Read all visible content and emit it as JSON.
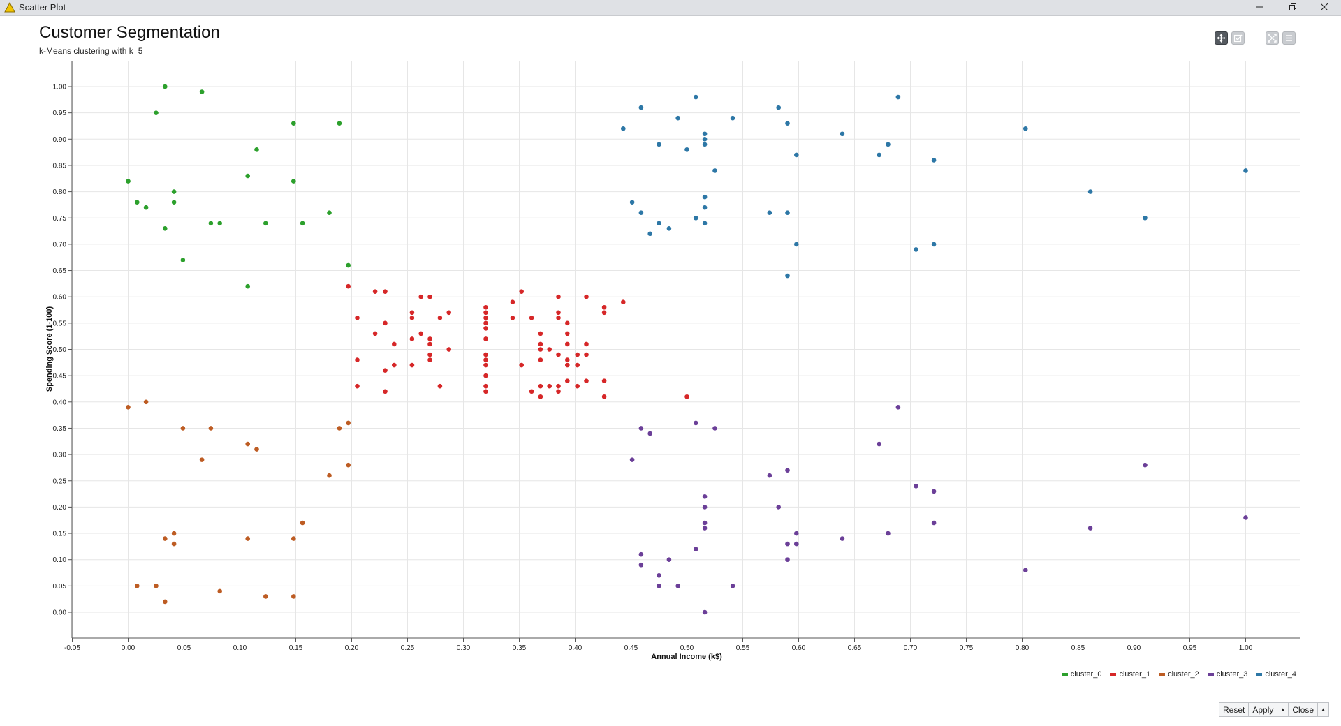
{
  "window": {
    "title": "Scatter Plot",
    "controls": [
      "minimize",
      "restore",
      "close"
    ]
  },
  "toolbar": {
    "buttons": [
      {
        "name": "pan-icon",
        "active": true
      },
      {
        "name": "select-icon",
        "active": false
      },
      {
        "name": "fullscreen-icon",
        "active": false
      },
      {
        "name": "menu-icon",
        "active": false
      }
    ]
  },
  "buttons": {
    "reset": "Reset",
    "apply": "Apply",
    "close": "Close"
  },
  "chart_data": {
    "type": "scatter",
    "title": "Customer Segmentation",
    "subtitle": "k-Means clustering with k=5",
    "xlabel": "Annual Income (k$)",
    "ylabel": "Spending Score (1-100)",
    "xlim": [
      -0.05,
      1.05
    ],
    "ylim": [
      -0.05,
      1.05
    ],
    "x_ticks": [
      "-0.05",
      "0.00",
      "0.05",
      "0.10",
      "0.15",
      "0.20",
      "0.25",
      "0.30",
      "0.35",
      "0.40",
      "0.45",
      "0.50",
      "0.55",
      "0.60",
      "0.65",
      "0.70",
      "0.75",
      "0.80",
      "0.85",
      "0.90",
      "0.95",
      "1.00"
    ],
    "y_ticks": [
      "0.00",
      "0.05",
      "0.10",
      "0.15",
      "0.20",
      "0.25",
      "0.30",
      "0.35",
      "0.40",
      "0.45",
      "0.50",
      "0.55",
      "0.60",
      "0.65",
      "0.70",
      "0.75",
      "0.80",
      "0.85",
      "0.90",
      "0.95",
      "1.00"
    ],
    "grid": true,
    "legend_position": "bottom-right",
    "series": [
      {
        "name": "cluster_0",
        "color": "#2ca02c",
        "points": [
          [
            0.033,
            1.0
          ],
          [
            0.066,
            0.99
          ],
          [
            0.025,
            0.95
          ],
          [
            0.148,
            0.93
          ],
          [
            0.189,
            0.93
          ],
          [
            0.115,
            0.88
          ],
          [
            0.0,
            0.82
          ],
          [
            0.107,
            0.83
          ],
          [
            0.148,
            0.82
          ],
          [
            0.041,
            0.8
          ],
          [
            0.008,
            0.78
          ],
          [
            0.041,
            0.78
          ],
          [
            0.016,
            0.77
          ],
          [
            0.18,
            0.76
          ],
          [
            0.074,
            0.74
          ],
          [
            0.082,
            0.74
          ],
          [
            0.123,
            0.74
          ],
          [
            0.156,
            0.74
          ],
          [
            0.033,
            0.73
          ],
          [
            0.049,
            0.67
          ],
          [
            0.197,
            0.66
          ],
          [
            0.107,
            0.62
          ]
        ]
      },
      {
        "name": "cluster_1",
        "color": "#d62728",
        "points": [
          [
            0.197,
            0.62
          ],
          [
            0.221,
            0.61
          ],
          [
            0.23,
            0.61
          ],
          [
            0.262,
            0.6
          ],
          [
            0.27,
            0.6
          ],
          [
            0.352,
            0.61
          ],
          [
            0.344,
            0.59
          ],
          [
            0.385,
            0.6
          ],
          [
            0.41,
            0.6
          ],
          [
            0.443,
            0.59
          ],
          [
            0.32,
            0.58
          ],
          [
            0.426,
            0.58
          ],
          [
            0.254,
            0.57
          ],
          [
            0.287,
            0.57
          ],
          [
            0.32,
            0.57
          ],
          [
            0.385,
            0.57
          ],
          [
            0.426,
            0.57
          ],
          [
            0.205,
            0.56
          ],
          [
            0.254,
            0.56
          ],
          [
            0.279,
            0.56
          ],
          [
            0.32,
            0.56
          ],
          [
            0.344,
            0.56
          ],
          [
            0.361,
            0.56
          ],
          [
            0.385,
            0.56
          ],
          [
            0.23,
            0.55
          ],
          [
            0.32,
            0.55
          ],
          [
            0.393,
            0.55
          ],
          [
            0.221,
            0.53
          ],
          [
            0.262,
            0.53
          ],
          [
            0.32,
            0.54
          ],
          [
            0.369,
            0.53
          ],
          [
            0.393,
            0.53
          ],
          [
            0.254,
            0.52
          ],
          [
            0.27,
            0.52
          ],
          [
            0.32,
            0.52
          ],
          [
            0.238,
            0.51
          ],
          [
            0.27,
            0.51
          ],
          [
            0.369,
            0.51
          ],
          [
            0.393,
            0.51
          ],
          [
            0.41,
            0.51
          ],
          [
            0.287,
            0.5
          ],
          [
            0.369,
            0.5
          ],
          [
            0.377,
            0.5
          ],
          [
            0.27,
            0.49
          ],
          [
            0.32,
            0.49
          ],
          [
            0.385,
            0.49
          ],
          [
            0.402,
            0.49
          ],
          [
            0.41,
            0.49
          ],
          [
            0.205,
            0.48
          ],
          [
            0.27,
            0.48
          ],
          [
            0.32,
            0.48
          ],
          [
            0.369,
            0.48
          ],
          [
            0.393,
            0.48
          ],
          [
            0.238,
            0.47
          ],
          [
            0.254,
            0.47
          ],
          [
            0.32,
            0.47
          ],
          [
            0.352,
            0.47
          ],
          [
            0.393,
            0.47
          ],
          [
            0.402,
            0.47
          ],
          [
            0.23,
            0.46
          ],
          [
            0.32,
            0.45
          ],
          [
            0.393,
            0.44
          ],
          [
            0.41,
            0.44
          ],
          [
            0.426,
            0.44
          ],
          [
            0.205,
            0.43
          ],
          [
            0.279,
            0.43
          ],
          [
            0.32,
            0.43
          ],
          [
            0.369,
            0.43
          ],
          [
            0.377,
            0.43
          ],
          [
            0.385,
            0.43
          ],
          [
            0.402,
            0.43
          ],
          [
            0.23,
            0.42
          ],
          [
            0.32,
            0.42
          ],
          [
            0.361,
            0.42
          ],
          [
            0.385,
            0.42
          ],
          [
            0.369,
            0.41
          ],
          [
            0.426,
            0.41
          ],
          [
            0.5,
            0.41
          ]
        ]
      },
      {
        "name": "cluster_2",
        "color": "#bd5c23",
        "points": [
          [
            0.0,
            0.39
          ],
          [
            0.016,
            0.4
          ],
          [
            0.197,
            0.36
          ],
          [
            0.049,
            0.35
          ],
          [
            0.074,
            0.35
          ],
          [
            0.189,
            0.35
          ],
          [
            0.107,
            0.32
          ],
          [
            0.115,
            0.31
          ],
          [
            0.066,
            0.29
          ],
          [
            0.197,
            0.28
          ],
          [
            0.18,
            0.26
          ],
          [
            0.156,
            0.17
          ],
          [
            0.041,
            0.15
          ],
          [
            0.033,
            0.14
          ],
          [
            0.107,
            0.14
          ],
          [
            0.148,
            0.14
          ],
          [
            0.041,
            0.13
          ],
          [
            0.008,
            0.05
          ],
          [
            0.025,
            0.05
          ],
          [
            0.082,
            0.04
          ],
          [
            0.123,
            0.03
          ],
          [
            0.148,
            0.03
          ],
          [
            0.033,
            0.02
          ]
        ]
      },
      {
        "name": "cluster_3",
        "color": "#6b3f98",
        "points": [
          [
            0.689,
            0.39
          ],
          [
            0.508,
            0.36
          ],
          [
            0.525,
            0.35
          ],
          [
            0.459,
            0.35
          ],
          [
            0.467,
            0.34
          ],
          [
            0.672,
            0.32
          ],
          [
            0.451,
            0.29
          ],
          [
            0.91,
            0.28
          ],
          [
            0.59,
            0.27
          ],
          [
            0.574,
            0.26
          ],
          [
            0.705,
            0.24
          ],
          [
            0.721,
            0.23
          ],
          [
            0.516,
            0.22
          ],
          [
            0.516,
            0.2
          ],
          [
            0.582,
            0.2
          ],
          [
            1.0,
            0.18
          ],
          [
            0.516,
            0.17
          ],
          [
            0.721,
            0.17
          ],
          [
            0.516,
            0.16
          ],
          [
            0.861,
            0.16
          ],
          [
            0.598,
            0.15
          ],
          [
            0.68,
            0.15
          ],
          [
            0.639,
            0.14
          ],
          [
            0.59,
            0.13
          ],
          [
            0.598,
            0.13
          ],
          [
            0.508,
            0.12
          ],
          [
            0.459,
            0.11
          ],
          [
            0.59,
            0.1
          ],
          [
            0.484,
            0.1
          ],
          [
            0.459,
            0.09
          ],
          [
            0.475,
            0.07
          ],
          [
            0.803,
            0.08
          ],
          [
            0.475,
            0.05
          ],
          [
            0.492,
            0.05
          ],
          [
            0.541,
            0.05
          ],
          [
            0.516,
            0.0
          ]
        ]
      },
      {
        "name": "cluster_4",
        "color": "#2d77a6",
        "points": [
          [
            0.508,
            0.98
          ],
          [
            0.689,
            0.98
          ],
          [
            0.459,
            0.96
          ],
          [
            0.582,
            0.96
          ],
          [
            0.492,
            0.94
          ],
          [
            0.541,
            0.94
          ],
          [
            0.59,
            0.93
          ],
          [
            0.443,
            0.92
          ],
          [
            0.803,
            0.92
          ],
          [
            0.639,
            0.91
          ],
          [
            0.516,
            0.91
          ],
          [
            0.516,
            0.9
          ],
          [
            0.475,
            0.89
          ],
          [
            0.516,
            0.89
          ],
          [
            0.68,
            0.89
          ],
          [
            0.5,
            0.88
          ],
          [
            0.598,
            0.87
          ],
          [
            0.672,
            0.87
          ],
          [
            0.721,
            0.86
          ],
          [
            0.525,
            0.84
          ],
          [
            1.0,
            0.84
          ],
          [
            0.861,
            0.8
          ],
          [
            0.516,
            0.79
          ],
          [
            0.451,
            0.78
          ],
          [
            0.516,
            0.77
          ],
          [
            0.459,
            0.76
          ],
          [
            0.574,
            0.76
          ],
          [
            0.59,
            0.76
          ],
          [
            0.508,
            0.75
          ],
          [
            0.91,
            0.75
          ],
          [
            0.516,
            0.74
          ],
          [
            0.475,
            0.74
          ],
          [
            0.484,
            0.73
          ],
          [
            0.467,
            0.72
          ],
          [
            0.598,
            0.7
          ],
          [
            0.721,
            0.7
          ],
          [
            0.705,
            0.69
          ],
          [
            0.59,
            0.64
          ]
        ]
      }
    ]
  }
}
